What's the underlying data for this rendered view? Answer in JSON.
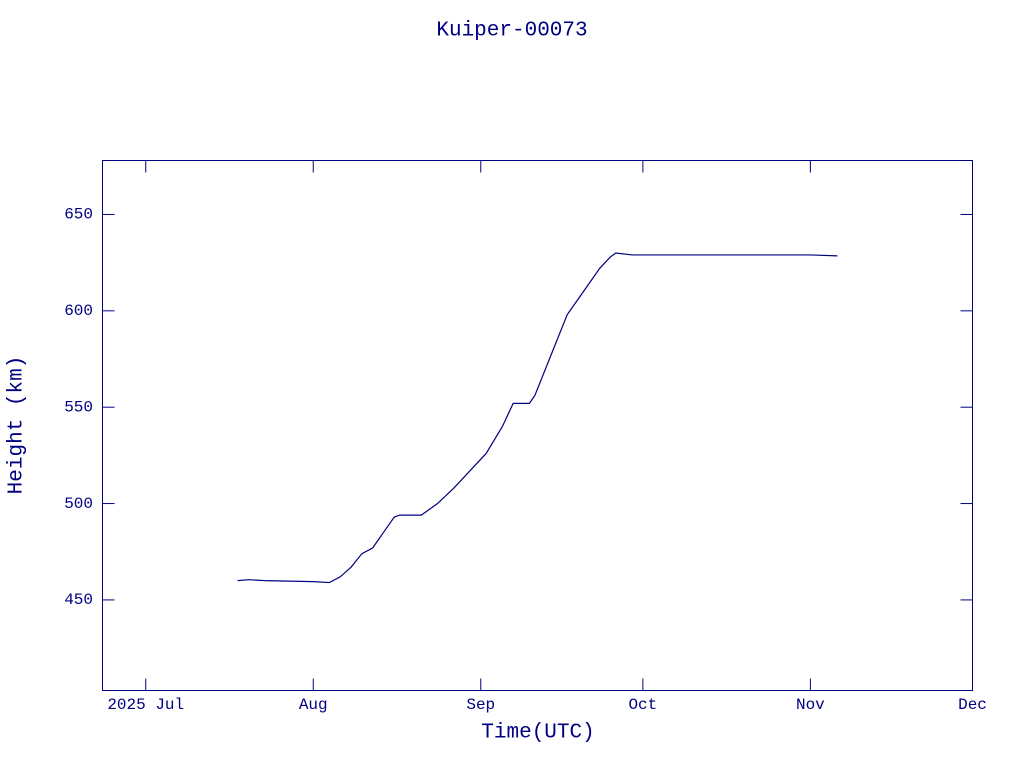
{
  "chart_data": {
    "type": "line",
    "title": "Kuiper-00073",
    "x_label": "Time(UTC)",
    "y_label": "Height (km)",
    "color": "#000080",
    "xlim": [
      "2025-06-23",
      "2025-12-01"
    ],
    "xticks": [
      {
        "value": "2025-07-01",
        "label": "2025 Jul"
      },
      {
        "value": "2025-08-01",
        "label": "Aug"
      },
      {
        "value": "2025-09-01",
        "label": "Sep"
      },
      {
        "value": "2025-10-01",
        "label": "Oct"
      },
      {
        "value": "2025-11-01",
        "label": "Nov"
      },
      {
        "value": "2025-12-01",
        "label": "Dec"
      }
    ],
    "ylim": [
      403,
      678
    ],
    "yticks": [
      450,
      500,
      550,
      600,
      650
    ],
    "x": [
      "2025-07-18",
      "2025-07-20",
      "2025-07-23",
      "2025-08-01",
      "2025-08-04",
      "2025-08-06",
      "2025-08-08",
      "2025-08-10",
      "2025-08-12",
      "2025-08-14",
      "2025-08-16",
      "2025-08-17",
      "2025-08-21",
      "2025-08-24",
      "2025-08-27",
      "2025-08-30",
      "2025-09-02",
      "2025-09-05",
      "2025-09-07",
      "2025-09-10",
      "2025-09-11",
      "2025-09-13",
      "2025-09-15",
      "2025-09-17",
      "2025-09-19",
      "2025-09-21",
      "2025-09-23",
      "2025-09-25",
      "2025-09-26",
      "2025-09-29",
      "2025-10-15",
      "2025-11-01",
      "2025-11-06"
    ],
    "values": [
      460,
      460.5,
      460,
      459.5,
      459,
      462,
      467,
      474,
      477,
      485,
      493,
      494,
      494,
      500,
      508,
      517,
      526,
      540,
      552,
      552,
      556,
      570,
      584,
      598,
      606,
      614,
      622,
      628,
      630,
      629,
      629,
      629,
      628.5
    ]
  }
}
